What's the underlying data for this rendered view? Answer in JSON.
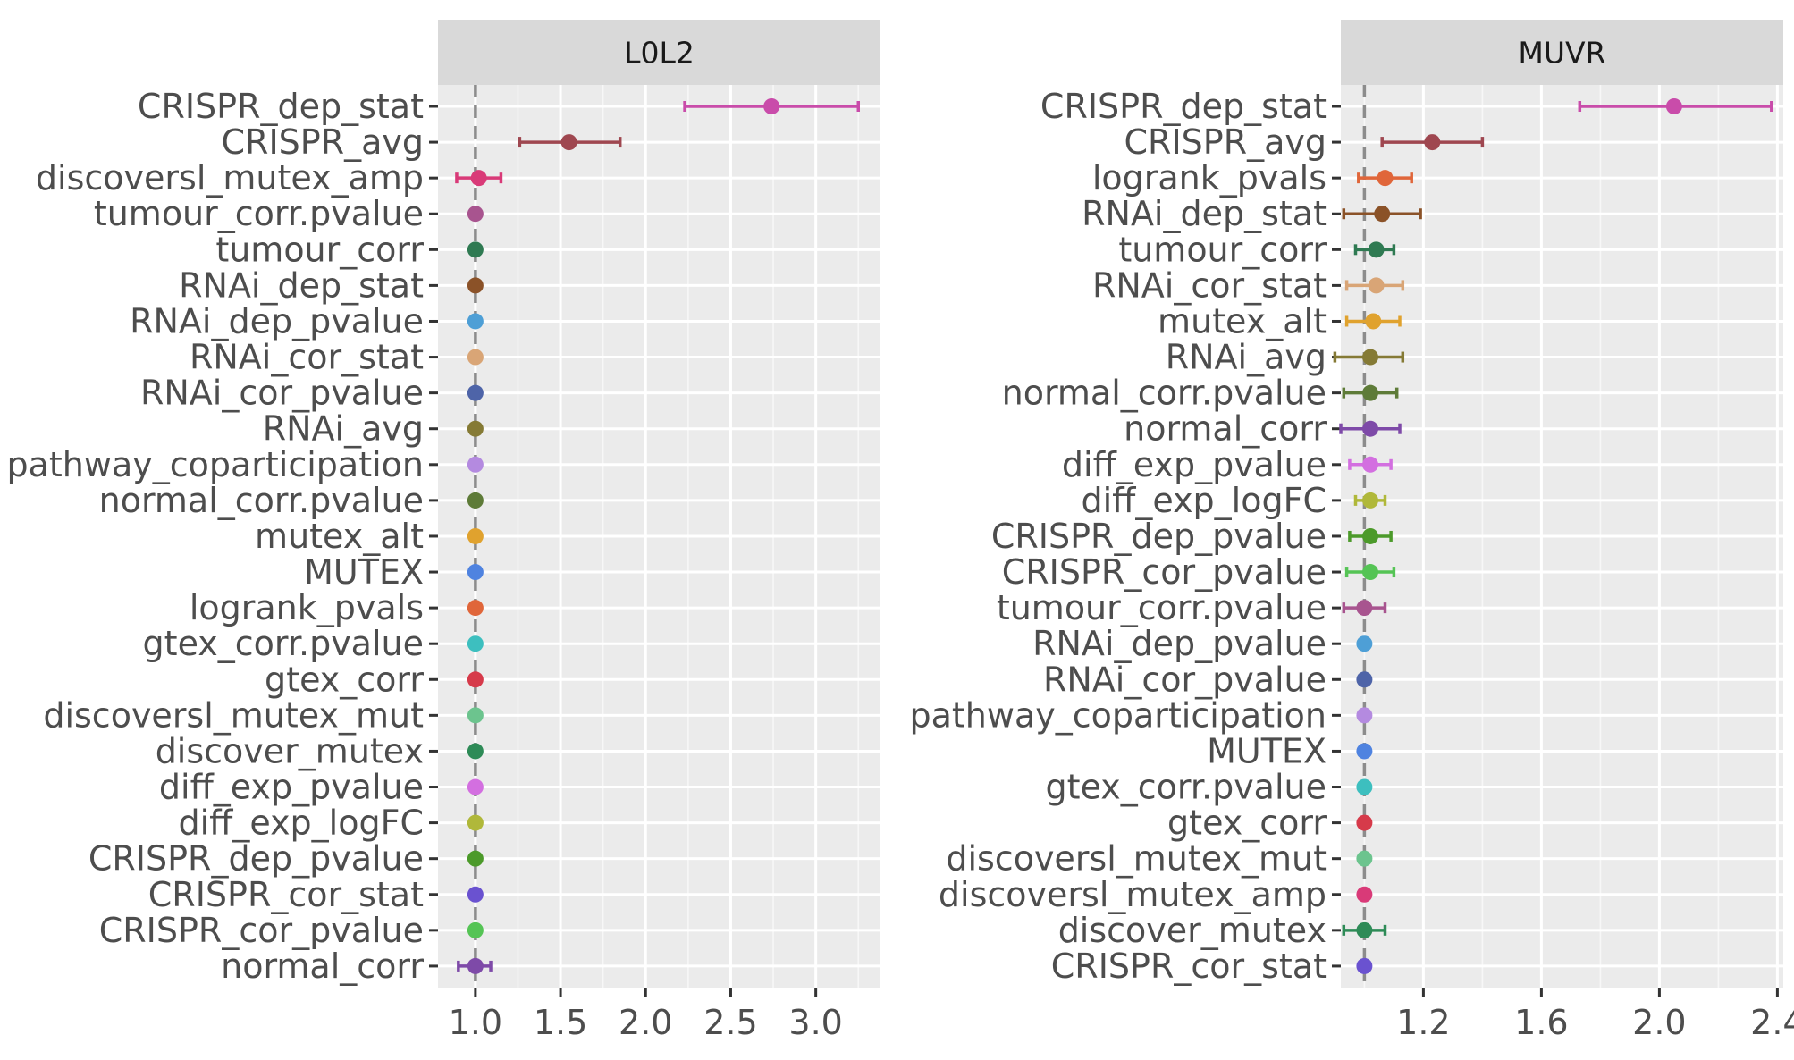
{
  "chart_data": [
    {
      "type": "scatter",
      "subtype": "forest-plot",
      "panel_title": "L0L2",
      "xlim": [
        0.78,
        3.38
      ],
      "x_ticks": [
        1.0,
        1.5,
        2.0,
        2.5,
        3.0
      ],
      "x_tick_labels": [
        "1.0",
        "1.5",
        "2.0",
        "2.5",
        "3.0"
      ],
      "reference_line": 1.0,
      "grid": true,
      "rows": [
        {
          "label": "CRISPR_dep_stat",
          "value": 2.74,
          "lo": 2.23,
          "hi": 3.25,
          "color": "#C94CAA"
        },
        {
          "label": "CRISPR_avg",
          "value": 1.55,
          "lo": 1.26,
          "hi": 1.85,
          "color": "#9F4750"
        },
        {
          "label": "discoversl_mutex_amp",
          "value": 1.02,
          "lo": 0.89,
          "hi": 1.15,
          "color": "#D93A78"
        },
        {
          "label": "tumour_corr.pvalue",
          "value": 1.0,
          "lo": 1.0,
          "hi": 1.0,
          "color": "#A8548F"
        },
        {
          "label": "tumour_corr",
          "value": 1.0,
          "lo": 1.0,
          "hi": 1.0,
          "color": "#2F7A52"
        },
        {
          "label": "RNAi_dep_stat",
          "value": 1.0,
          "lo": 1.0,
          "hi": 1.0,
          "color": "#8B5228"
        },
        {
          "label": "RNAi_dep_pvalue",
          "value": 1.0,
          "lo": 1.0,
          "hi": 1.0,
          "color": "#4E9FD6"
        },
        {
          "label": "RNAi_cor_stat",
          "value": 1.0,
          "lo": 1.0,
          "hi": 1.0,
          "color": "#D9A576"
        },
        {
          "label": "RNAi_cor_pvalue",
          "value": 1.0,
          "lo": 1.0,
          "hi": 1.0,
          "color": "#4E64A8"
        },
        {
          "label": "RNAi_avg",
          "value": 1.0,
          "lo": 1.0,
          "hi": 1.0,
          "color": "#857A35"
        },
        {
          "label": "pathway_coparticipation",
          "value": 1.0,
          "lo": 1.0,
          "hi": 1.0,
          "color": "#B48AE0"
        },
        {
          "label": "normal_corr.pvalue",
          "value": 1.0,
          "lo": 1.0,
          "hi": 1.0,
          "color": "#5E7B38"
        },
        {
          "label": "mutex_alt",
          "value": 1.0,
          "lo": 1.0,
          "hi": 1.0,
          "color": "#E0A22E"
        },
        {
          "label": "MUTEX",
          "value": 1.0,
          "lo": 1.0,
          "hi": 1.0,
          "color": "#4F83E0"
        },
        {
          "label": "logrank_pvals",
          "value": 1.0,
          "lo": 1.0,
          "hi": 1.0,
          "color": "#E0663A"
        },
        {
          "label": "gtex_corr.pvalue",
          "value": 1.0,
          "lo": 1.0,
          "hi": 1.0,
          "color": "#3DBFBF"
        },
        {
          "label": "gtex_corr",
          "value": 1.0,
          "lo": 1.0,
          "hi": 1.0,
          "color": "#D63A4A"
        },
        {
          "label": "discoversl_mutex_mut",
          "value": 1.0,
          "lo": 1.0,
          "hi": 1.0,
          "color": "#6CC48E"
        },
        {
          "label": "discover_mutex",
          "value": 1.0,
          "lo": 1.0,
          "hi": 1.0,
          "color": "#2E8B57"
        },
        {
          "label": "diff_exp_pvalue",
          "value": 1.0,
          "lo": 1.0,
          "hi": 1.0,
          "color": "#D36FE0"
        },
        {
          "label": "diff_exp_logFC",
          "value": 1.0,
          "lo": 1.0,
          "hi": 1.0,
          "color": "#B0B83A"
        },
        {
          "label": "CRISPR_dep_pvalue",
          "value": 1.0,
          "lo": 1.0,
          "hi": 1.0,
          "color": "#4C9A2A"
        },
        {
          "label": "CRISPR_cor_stat",
          "value": 1.0,
          "lo": 1.0,
          "hi": 1.0,
          "color": "#6A52D0"
        },
        {
          "label": "CRISPR_cor_pvalue",
          "value": 1.0,
          "lo": 1.0,
          "hi": 1.0,
          "color": "#55C455"
        },
        {
          "label": "normal_corr",
          "value": 1.0,
          "lo": 0.9,
          "hi": 1.09,
          "color": "#7E4AA8"
        }
      ]
    },
    {
      "type": "scatter",
      "subtype": "forest-plot",
      "panel_title": "MUVR",
      "xlim": [
        0.92,
        2.42
      ],
      "x_ticks": [
        1.2,
        1.6,
        2.0,
        2.4
      ],
      "x_tick_labels": [
        "1.2",
        "1.6",
        "2.0",
        "2.4"
      ],
      "reference_line": 1.0,
      "grid": true,
      "rows": [
        {
          "label": "CRISPR_dep_stat",
          "value": 2.05,
          "lo": 1.73,
          "hi": 2.38,
          "color": "#C94CAA"
        },
        {
          "label": "CRISPR_avg",
          "value": 1.23,
          "lo": 1.06,
          "hi": 1.4,
          "color": "#9F4750"
        },
        {
          "label": "logrank_pvals",
          "value": 1.07,
          "lo": 0.98,
          "hi": 1.16,
          "color": "#E0663A"
        },
        {
          "label": "RNAi_dep_stat",
          "value": 1.06,
          "lo": 0.93,
          "hi": 1.19,
          "color": "#8B5228"
        },
        {
          "label": "tumour_corr",
          "value": 1.04,
          "lo": 0.97,
          "hi": 1.1,
          "color": "#2F7A52"
        },
        {
          "label": "RNAi_cor_stat",
          "value": 1.04,
          "lo": 0.94,
          "hi": 1.13,
          "color": "#D9A576"
        },
        {
          "label": "mutex_alt",
          "value": 1.03,
          "lo": 0.94,
          "hi": 1.12,
          "color": "#E0A22E"
        },
        {
          "label": "RNAi_avg",
          "value": 1.02,
          "lo": 0.9,
          "hi": 1.13,
          "color": "#857A35"
        },
        {
          "label": "normal_corr.pvalue",
          "value": 1.02,
          "lo": 0.93,
          "hi": 1.11,
          "color": "#5E7B38"
        },
        {
          "label": "normal_corr",
          "value": 1.02,
          "lo": 0.92,
          "hi": 1.12,
          "color": "#7E4AA8"
        },
        {
          "label": "diff_exp_pvalue",
          "value": 1.02,
          "lo": 0.95,
          "hi": 1.09,
          "color": "#D36FE0"
        },
        {
          "label": "diff_exp_logFC",
          "value": 1.02,
          "lo": 0.97,
          "hi": 1.07,
          "color": "#B0B83A"
        },
        {
          "label": "CRISPR_dep_pvalue",
          "value": 1.02,
          "lo": 0.95,
          "hi": 1.09,
          "color": "#4C9A2A"
        },
        {
          "label": "CRISPR_cor_pvalue",
          "value": 1.02,
          "lo": 0.94,
          "hi": 1.1,
          "color": "#55C455"
        },
        {
          "label": "tumour_corr.pvalue",
          "value": 1.0,
          "lo": 0.93,
          "hi": 1.07,
          "color": "#A8548F"
        },
        {
          "label": "RNAi_dep_pvalue",
          "value": 1.0,
          "lo": 1.0,
          "hi": 1.0,
          "color": "#4E9FD6"
        },
        {
          "label": "RNAi_cor_pvalue",
          "value": 1.0,
          "lo": 1.0,
          "hi": 1.0,
          "color": "#4E64A8"
        },
        {
          "label": "pathway_coparticipation",
          "value": 1.0,
          "lo": 1.0,
          "hi": 1.0,
          "color": "#B48AE0"
        },
        {
          "label": "MUTEX",
          "value": 1.0,
          "lo": 1.0,
          "hi": 1.0,
          "color": "#4F83E0"
        },
        {
          "label": "gtex_corr.pvalue",
          "value": 1.0,
          "lo": 1.0,
          "hi": 1.0,
          "color": "#3DBFBF"
        },
        {
          "label": "gtex_corr",
          "value": 1.0,
          "lo": 1.0,
          "hi": 1.0,
          "color": "#D63A4A"
        },
        {
          "label": "discoversl_mutex_mut",
          "value": 1.0,
          "lo": 1.0,
          "hi": 1.0,
          "color": "#6CC48E"
        },
        {
          "label": "discoversl_mutex_amp",
          "value": 1.0,
          "lo": 1.0,
          "hi": 1.0,
          "color": "#D93A78"
        },
        {
          "label": "discover_mutex",
          "value": 1.0,
          "lo": 0.93,
          "hi": 1.07,
          "color": "#2E8B57"
        },
        {
          "label": "CRISPR_cor_stat",
          "value": 1.0,
          "lo": 1.0,
          "hi": 1.0,
          "color": "#6A52D0"
        }
      ]
    }
  ]
}
